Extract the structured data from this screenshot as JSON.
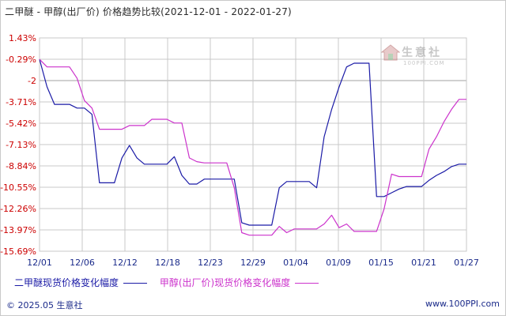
{
  "title": "二甲醚 - 甲醇(出厂价) 价格趋势比较(2021-12-01 - 2022-01-27)",
  "watermark": {
    "brand": "生意社",
    "site": "100PPI.COM"
  },
  "legend": [
    {
      "label": "二甲醚现货价格变化幅度",
      "color": "#1a1aa6"
    },
    {
      "label": "甲醇(出厂价)现货价格变化幅度",
      "color": "#cc33cc"
    }
  ],
  "footer": {
    "left": "© 2025.05 生意社",
    "right": "www.100PPI.com"
  },
  "colors": {
    "grid": "#c8c8c8",
    "zero_line": "#a0a0a0",
    "top_label": "#cc0000",
    "axis_label": "#cc0000",
    "x_label": "#1a2a8a"
  },
  "chart_data": {
    "type": "line",
    "x_ticks": [
      "12/01",
      "12/06",
      "12/12",
      "12/18",
      "12/23",
      "12/29",
      "01/04",
      "01/09",
      "01/15",
      "01/21",
      "01/27"
    ],
    "y_ticks": [
      "1.43%",
      "-0.29%",
      "-2",
      "-3.71%",
      "-5.42%",
      "-7.13%",
      "-8.84%",
      "-10.55%",
      "-12.26%",
      "-13.97%",
      "-15.69%"
    ],
    "ylim": [
      -15.69,
      1.43
    ],
    "xlim": [
      0,
      57
    ],
    "series": [
      {
        "name": "二甲醚现货价格变化幅度",
        "color": "#1a1aa6",
        "x": [
          0,
          1,
          2,
          3,
          4,
          5,
          6,
          7,
          8,
          9,
          10,
          11,
          12,
          13,
          14,
          15,
          16,
          17,
          18,
          19,
          20,
          21,
          22,
          23,
          24,
          25,
          26,
          27,
          28,
          29,
          30,
          31,
          32,
          33,
          34,
          35,
          36,
          37,
          38,
          39,
          40,
          41,
          42,
          43,
          44,
          45,
          46,
          47,
          48,
          49,
          50,
          51,
          52,
          53,
          54,
          55,
          56,
          57
        ],
        "values": [
          -0.29,
          -2.5,
          -3.9,
          -3.9,
          -3.9,
          -4.2,
          -4.2,
          -4.7,
          -10.2,
          -10.2,
          -10.2,
          -8.2,
          -7.2,
          -8.2,
          -8.7,
          -8.7,
          -8.7,
          -8.7,
          -8.1,
          -9.6,
          -10.3,
          -10.3,
          -9.9,
          -9.9,
          -9.9,
          -9.9,
          -9.9,
          -13.4,
          -13.6,
          -13.6,
          -13.6,
          -13.6,
          -10.6,
          -10.1,
          -10.1,
          -10.1,
          -10.1,
          -10.6,
          -6.5,
          -4.3,
          -2.5,
          -0.9,
          -0.6,
          -0.6,
          -0.6,
          -11.3,
          -11.3,
          -11.0,
          -10.7,
          -10.5,
          -10.5,
          -10.5,
          -10.0,
          -9.6,
          -9.3,
          -8.9,
          -8.7,
          -8.7
        ]
      },
      {
        "name": "甲醇(出厂价)现货价格变化幅度",
        "color": "#cc33cc",
        "x": [
          0,
          1,
          2,
          3,
          4,
          5,
          6,
          7,
          8,
          9,
          10,
          11,
          12,
          13,
          14,
          15,
          16,
          17,
          18,
          19,
          20,
          21,
          22,
          23,
          24,
          25,
          26,
          27,
          28,
          29,
          30,
          31,
          32,
          33,
          34,
          35,
          36,
          37,
          38,
          39,
          40,
          41,
          42,
          43,
          44,
          45,
          46,
          47,
          48,
          49,
          50,
          51,
          52,
          53,
          54,
          55,
          56,
          57
        ],
        "values": [
          -0.29,
          -0.9,
          -0.9,
          -0.9,
          -0.9,
          -1.8,
          -3.6,
          -4.2,
          -5.9,
          -5.9,
          -5.9,
          -5.9,
          -5.6,
          -5.6,
          -5.6,
          -5.1,
          -5.1,
          -5.1,
          -5.4,
          -5.4,
          -8.2,
          -8.5,
          -8.6,
          -8.6,
          -8.6,
          -8.6,
          -10.6,
          -14.2,
          -14.4,
          -14.4,
          -14.4,
          -14.4,
          -13.7,
          -14.2,
          -13.9,
          -13.9,
          -13.9,
          -13.9,
          -13.5,
          -12.8,
          -13.8,
          -13.5,
          -14.1,
          -14.1,
          -14.1,
          -14.1,
          -12.3,
          -9.5,
          -9.7,
          -9.7,
          -9.7,
          -9.7,
          -7.5,
          -6.5,
          -5.3,
          -4.3,
          -3.5,
          -3.5
        ]
      }
    ]
  }
}
